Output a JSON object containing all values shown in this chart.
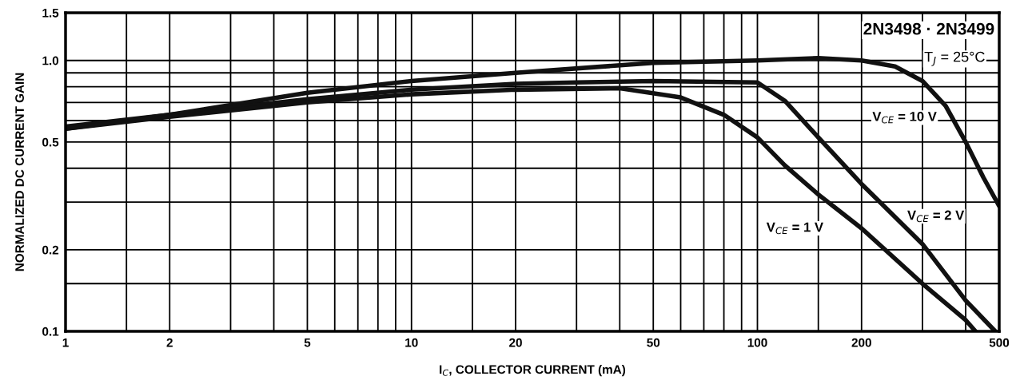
{
  "chart_data": {
    "type": "line",
    "title": "2N3498 · 2N3499",
    "subtitle": "T$_{J}$ = 25°C",
    "xlabel": "I$_{C}$, COLLECTOR CURRENT (mA)",
    "ylabel": "NORMALIZED DC CURRENT GAIN",
    "log": "xy",
    "grid": true,
    "marker": "none",
    "line_style": "solid",
    "xlim": [
      1,
      500
    ],
    "ylim": [
      0.1,
      1.5
    ],
    "xticks": [
      1,
      {
        "value": 1.5,
        "label": null
      },
      2,
      {
        "value": 3,
        "label": null
      },
      {
        "value": 4,
        "label": null
      },
      5,
      {
        "value": 6,
        "label": null
      },
      {
        "value": 7,
        "label": null
      },
      {
        "value": 8,
        "label": null
      },
      {
        "value": 9,
        "label": null
      },
      10,
      {
        "value": 15,
        "label": null
      },
      20,
      {
        "value": 30,
        "label": null
      },
      {
        "value": 40,
        "label": null
      },
      50,
      {
        "value": 60,
        "label": null
      },
      {
        "value": 70,
        "label": null
      },
      {
        "value": 80,
        "label": null
      },
      {
        "value": 90,
        "label": null
      },
      100,
      {
        "value": 150,
        "label": null
      },
      200,
      {
        "value": 300,
        "label": null
      },
      {
        "value": 400,
        "label": null
      },
      500
    ],
    "yticks": [
      0.1,
      {
        "value": 0.15,
        "label": null
      },
      0.2,
      {
        "value": 0.3,
        "label": null
      },
      {
        "value": 0.4,
        "label": null
      },
      0.5,
      {
        "value": 0.6,
        "label": null
      },
      {
        "value": 0.7,
        "label": null
      },
      {
        "value": 0.8,
        "label": null
      },
      {
        "value": 0.9,
        "label": null
      },
      {
        "value": 1.0,
        "label": "1.0"
      },
      1.5
    ],
    "series": [
      {
        "name": "V$_{CE}$ = 10 V",
        "color": "#111111",
        "x": [
          1,
          2,
          5,
          10,
          20,
          50,
          100,
          150,
          200,
          250,
          300,
          350,
          400,
          450,
          500
        ],
        "values": [
          0.56,
          0.63,
          0.76,
          0.84,
          0.9,
          0.98,
          1.0,
          1.02,
          1.0,
          0.95,
          0.84,
          0.68,
          0.5,
          0.37,
          0.29
        ]
      },
      {
        "name": "V$_{CE}$ = 2 V",
        "color": "#111111",
        "x": [
          1,
          2,
          5,
          10,
          20,
          30,
          50,
          100,
          120,
          150,
          200,
          300,
          400,
          487
        ],
        "values": [
          0.57,
          0.63,
          0.72,
          0.78,
          0.82,
          0.83,
          0.84,
          0.83,
          0.71,
          0.52,
          0.35,
          0.21,
          0.13,
          0.1
        ]
      },
      {
        "name": "V$_{CE}$ = 1 V",
        "color": "#111111",
        "x": [
          1,
          2,
          5,
          10,
          20,
          40,
          60,
          80,
          100,
          120,
          150,
          200,
          300,
          400,
          427
        ],
        "values": [
          0.56,
          0.62,
          0.7,
          0.75,
          0.78,
          0.79,
          0.73,
          0.63,
          0.52,
          0.41,
          0.32,
          0.24,
          0.15,
          0.11,
          0.1
        ]
      }
    ]
  }
}
